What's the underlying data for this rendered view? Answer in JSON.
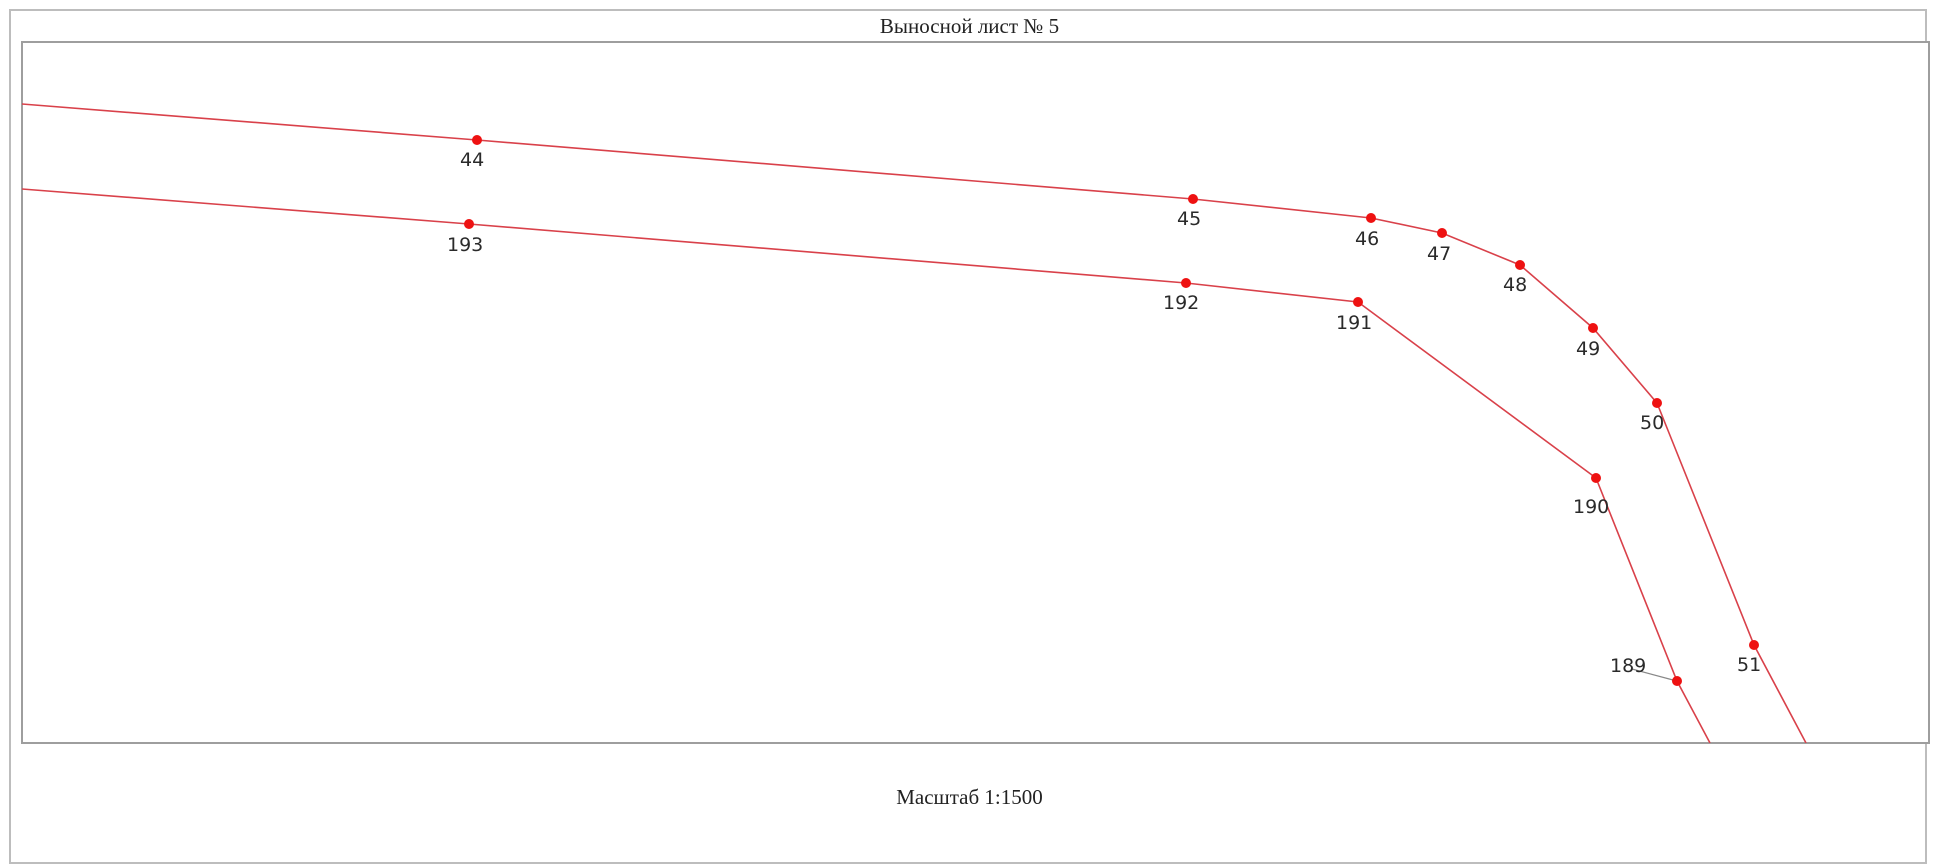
{
  "title": "Выносной лист № 5",
  "scale": "Масштаб 1:1500",
  "colors": {
    "boundary_line": "#d9414a",
    "point_marker": "#ee1111",
    "leader_line": "#888888"
  },
  "icons": {
    "boundary_point": "red-dot"
  },
  "boundaries": [
    {
      "name": "outer-boundary",
      "points": [
        "44",
        "45",
        "46",
        "47",
        "48",
        "49",
        "50",
        "51"
      ]
    },
    {
      "name": "inner-boundary",
      "points": [
        "193",
        "192",
        "191",
        "190",
        "189"
      ]
    }
  ],
  "point_labels": [
    "44",
    "45",
    "46",
    "47",
    "48",
    "49",
    "50",
    "51",
    "193",
    "192",
    "191",
    "190",
    "189"
  ]
}
